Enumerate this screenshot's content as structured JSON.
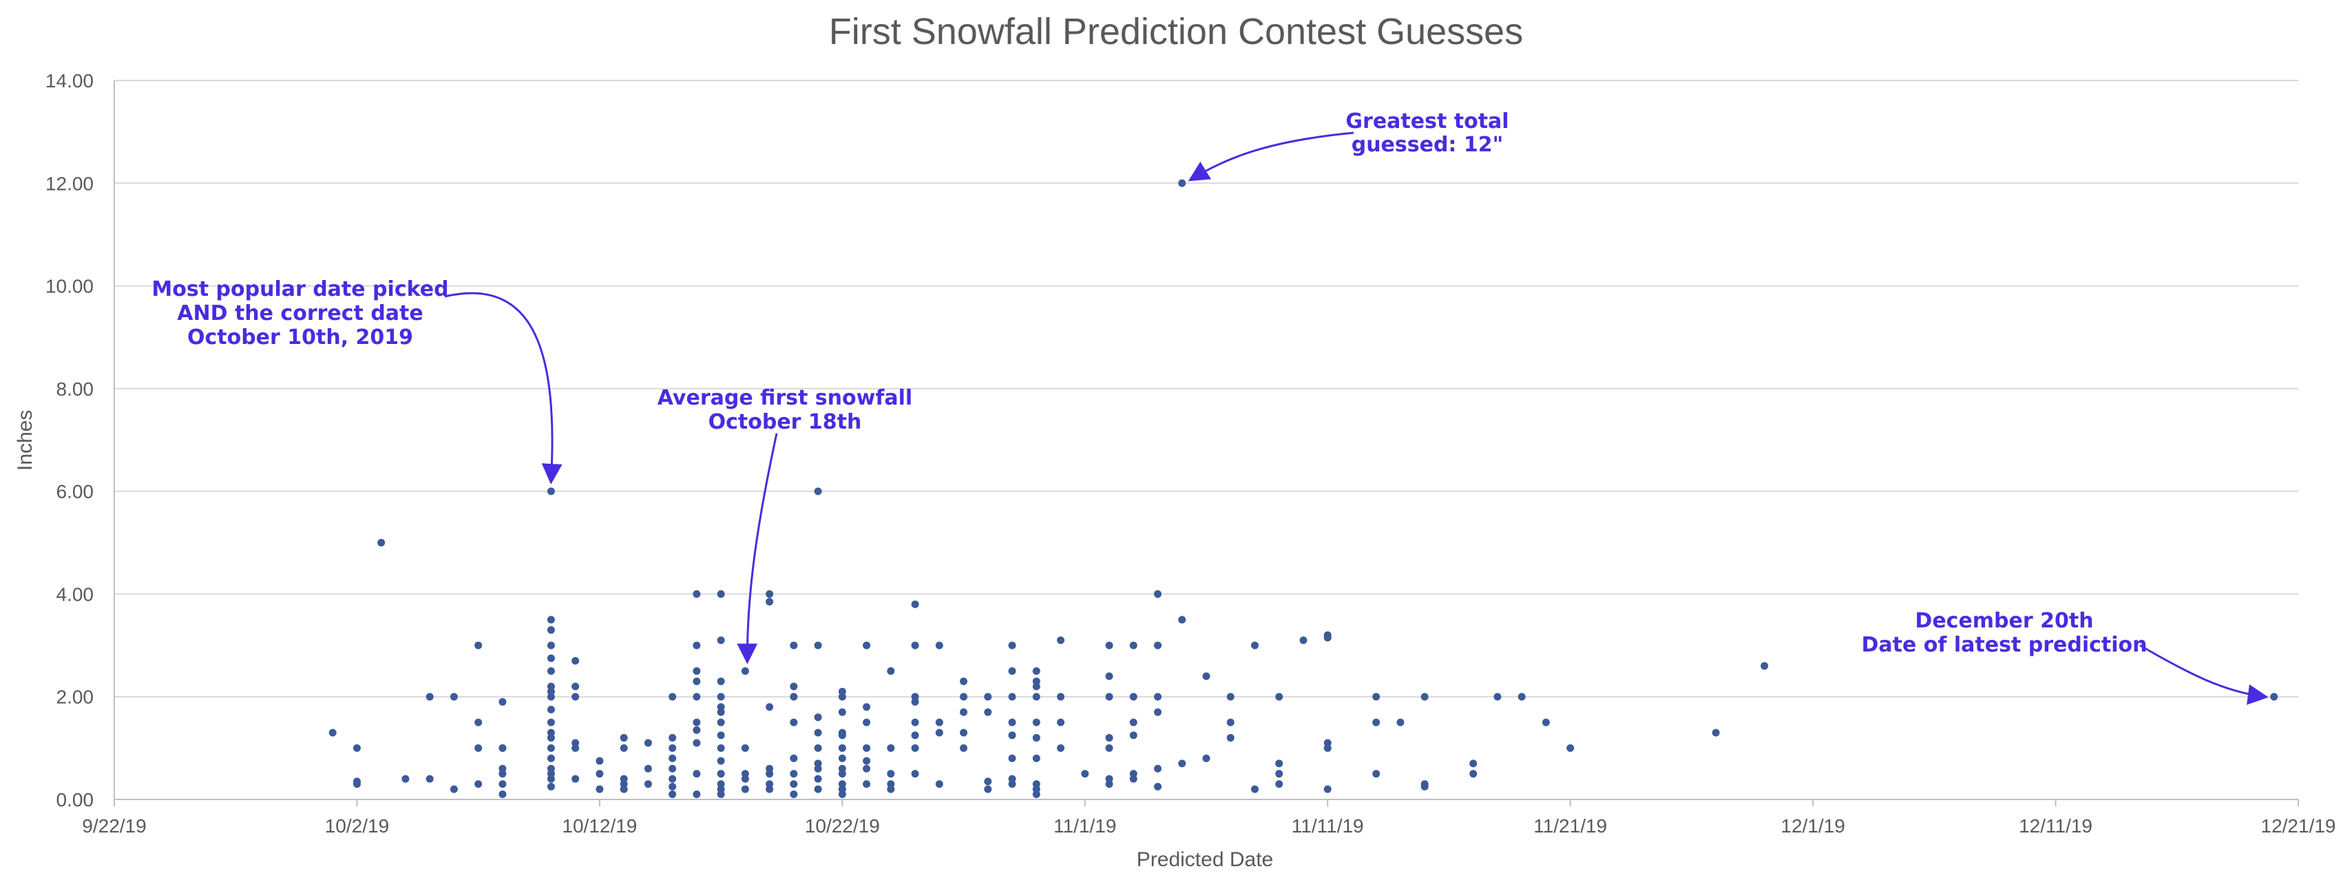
{
  "chart_data": {
    "type": "scatter",
    "title": "First Snowfall Prediction Contest Guesses",
    "xlabel": "Predicted Date",
    "ylabel": "Inches",
    "x_format": "M/D/YY",
    "xlim": [
      "2019-09-22",
      "2019-12-21"
    ],
    "ylim": [
      0,
      14
    ],
    "x_ticks": [
      {
        "date": "2019-09-22",
        "label": "9/22/19"
      },
      {
        "date": "2019-10-02",
        "label": "10/2/19"
      },
      {
        "date": "2019-10-12",
        "label": "10/12/19"
      },
      {
        "date": "2019-10-22",
        "label": "10/22/19"
      },
      {
        "date": "2019-11-01",
        "label": "11/1/19"
      },
      {
        "date": "2019-11-11",
        "label": "11/11/19"
      },
      {
        "date": "2019-11-21",
        "label": "11/21/19"
      },
      {
        "date": "2019-12-01",
        "label": "12/1/19"
      },
      {
        "date": "2019-12-11",
        "label": "12/11/19"
      },
      {
        "date": "2019-12-21",
        "label": "12/21/19"
      }
    ],
    "y_ticks": [
      "0.00",
      "2.00",
      "4.00",
      "6.00",
      "8.00",
      "10.00",
      "12.00",
      "14.00"
    ],
    "grid": true,
    "legend": false,
    "marker_color": "#3C5A99",
    "points": [
      {
        "x": "2019-10-01",
        "y": 1.3
      },
      {
        "x": "2019-10-02",
        "y": 0.35
      },
      {
        "x": "2019-10-02",
        "y": 0.3
      },
      {
        "x": "2019-10-02",
        "y": 1.0
      },
      {
        "x": "2019-10-03",
        "y": 5.0
      },
      {
        "x": "2019-10-04",
        "y": 0.4
      },
      {
        "x": "2019-10-05",
        "y": 2.0
      },
      {
        "x": "2019-10-05",
        "y": 0.4
      },
      {
        "x": "2019-10-06",
        "y": 2.0
      },
      {
        "x": "2019-10-06",
        "y": 0.2
      },
      {
        "x": "2019-10-07",
        "y": 3.0
      },
      {
        "x": "2019-10-07",
        "y": 1.5
      },
      {
        "x": "2019-10-07",
        "y": 1.0
      },
      {
        "x": "2019-10-07",
        "y": 0.3
      },
      {
        "x": "2019-10-08",
        "y": 1.9
      },
      {
        "x": "2019-10-08",
        "y": 1.0
      },
      {
        "x": "2019-10-08",
        "y": 1.0
      },
      {
        "x": "2019-10-08",
        "y": 0.6
      },
      {
        "x": "2019-10-08",
        "y": 0.5
      },
      {
        "x": "2019-10-08",
        "y": 0.3
      },
      {
        "x": "2019-10-08",
        "y": 0.1
      },
      {
        "x": "2019-10-10",
        "y": 6.0
      },
      {
        "x": "2019-10-10",
        "y": 3.5
      },
      {
        "x": "2019-10-10",
        "y": 3.3
      },
      {
        "x": "2019-10-10",
        "y": 3.0
      },
      {
        "x": "2019-10-10",
        "y": 2.75
      },
      {
        "x": "2019-10-10",
        "y": 2.5
      },
      {
        "x": "2019-10-10",
        "y": 2.2
      },
      {
        "x": "2019-10-10",
        "y": 2.1
      },
      {
        "x": "2019-10-10",
        "y": 2.0
      },
      {
        "x": "2019-10-10",
        "y": 1.75
      },
      {
        "x": "2019-10-10",
        "y": 1.5
      },
      {
        "x": "2019-10-10",
        "y": 1.3
      },
      {
        "x": "2019-10-10",
        "y": 1.2
      },
      {
        "x": "2019-10-10",
        "y": 1.0
      },
      {
        "x": "2019-10-10",
        "y": 0.8
      },
      {
        "x": "2019-10-10",
        "y": 0.6
      },
      {
        "x": "2019-10-10",
        "y": 0.5
      },
      {
        "x": "2019-10-10",
        "y": 0.4
      },
      {
        "x": "2019-10-10",
        "y": 0.25
      },
      {
        "x": "2019-10-11",
        "y": 2.7
      },
      {
        "x": "2019-10-11",
        "y": 2.2
      },
      {
        "x": "2019-10-11",
        "y": 2.0
      },
      {
        "x": "2019-10-11",
        "y": 1.1
      },
      {
        "x": "2019-10-11",
        "y": 1.0
      },
      {
        "x": "2019-10-11",
        "y": 0.4
      },
      {
        "x": "2019-10-12",
        "y": 0.75
      },
      {
        "x": "2019-10-12",
        "y": 0.5
      },
      {
        "x": "2019-10-12",
        "y": 0.2
      },
      {
        "x": "2019-10-13",
        "y": 1.2
      },
      {
        "x": "2019-10-13",
        "y": 1.0
      },
      {
        "x": "2019-10-13",
        "y": 0.4
      },
      {
        "x": "2019-10-13",
        "y": 0.3
      },
      {
        "x": "2019-10-13",
        "y": 0.2
      },
      {
        "x": "2019-10-14",
        "y": 1.1
      },
      {
        "x": "2019-10-14",
        "y": 0.6
      },
      {
        "x": "2019-10-14",
        "y": 0.3
      },
      {
        "x": "2019-10-15",
        "y": 2.0
      },
      {
        "x": "2019-10-15",
        "y": 1.2
      },
      {
        "x": "2019-10-15",
        "y": 1.0
      },
      {
        "x": "2019-10-15",
        "y": 0.8
      },
      {
        "x": "2019-10-15",
        "y": 0.6
      },
      {
        "x": "2019-10-15",
        "y": 0.4
      },
      {
        "x": "2019-10-15",
        "y": 0.25
      },
      {
        "x": "2019-10-15",
        "y": 0.1
      },
      {
        "x": "2019-10-16",
        "y": 4.0
      },
      {
        "x": "2019-10-16",
        "y": 3.0
      },
      {
        "x": "2019-10-16",
        "y": 2.5
      },
      {
        "x": "2019-10-16",
        "y": 2.3
      },
      {
        "x": "2019-10-16",
        "y": 2.0
      },
      {
        "x": "2019-10-16",
        "y": 1.5
      },
      {
        "x": "2019-10-16",
        "y": 1.35
      },
      {
        "x": "2019-10-16",
        "y": 1.1
      },
      {
        "x": "2019-10-16",
        "y": 0.5
      },
      {
        "x": "2019-10-16",
        "y": 0.1
      },
      {
        "x": "2019-10-17",
        "y": 4.0
      },
      {
        "x": "2019-10-17",
        "y": 3.1
      },
      {
        "x": "2019-10-17",
        "y": 2.3
      },
      {
        "x": "2019-10-17",
        "y": 2.0
      },
      {
        "x": "2019-10-17",
        "y": 1.8
      },
      {
        "x": "2019-10-17",
        "y": 1.7
      },
      {
        "x": "2019-10-17",
        "y": 1.5
      },
      {
        "x": "2019-10-17",
        "y": 1.25
      },
      {
        "x": "2019-10-17",
        "y": 1.0
      },
      {
        "x": "2019-10-17",
        "y": 0.75
      },
      {
        "x": "2019-10-17",
        "y": 0.5
      },
      {
        "x": "2019-10-17",
        "y": 0.3
      },
      {
        "x": "2019-10-17",
        "y": 0.2
      },
      {
        "x": "2019-10-17",
        "y": 0.1
      },
      {
        "x": "2019-10-18",
        "y": 2.5
      },
      {
        "x": "2019-10-18",
        "y": 1.0
      },
      {
        "x": "2019-10-18",
        "y": 0.5
      },
      {
        "x": "2019-10-18",
        "y": 0.4
      },
      {
        "x": "2019-10-18",
        "y": 0.2
      },
      {
        "x": "2019-10-19",
        "y": 4.0
      },
      {
        "x": "2019-10-19",
        "y": 3.85
      },
      {
        "x": "2019-10-19",
        "y": 1.8
      },
      {
        "x": "2019-10-19",
        "y": 0.6
      },
      {
        "x": "2019-10-19",
        "y": 0.5
      },
      {
        "x": "2019-10-19",
        "y": 0.3
      },
      {
        "x": "2019-10-19",
        "y": 0.2
      },
      {
        "x": "2019-10-20",
        "y": 3.0
      },
      {
        "x": "2019-10-20",
        "y": 2.2
      },
      {
        "x": "2019-10-20",
        "y": 2.0
      },
      {
        "x": "2019-10-20",
        "y": 1.5
      },
      {
        "x": "2019-10-20",
        "y": 0.8
      },
      {
        "x": "2019-10-20",
        "y": 0.5
      },
      {
        "x": "2019-10-20",
        "y": 0.3
      },
      {
        "x": "2019-10-20",
        "y": 0.1
      },
      {
        "x": "2019-10-21",
        "y": 6.0
      },
      {
        "x": "2019-10-21",
        "y": 3.0
      },
      {
        "x": "2019-10-21",
        "y": 1.6
      },
      {
        "x": "2019-10-21",
        "y": 1.3
      },
      {
        "x": "2019-10-21",
        "y": 1.0
      },
      {
        "x": "2019-10-21",
        "y": 0.7
      },
      {
        "x": "2019-10-21",
        "y": 0.6
      },
      {
        "x": "2019-10-21",
        "y": 0.4
      },
      {
        "x": "2019-10-21",
        "y": 0.2
      },
      {
        "x": "2019-10-22",
        "y": 2.1
      },
      {
        "x": "2019-10-22",
        "y": 2.0
      },
      {
        "x": "2019-10-22",
        "y": 1.7
      },
      {
        "x": "2019-10-22",
        "y": 1.3
      },
      {
        "x": "2019-10-22",
        "y": 1.25
      },
      {
        "x": "2019-10-22",
        "y": 1.0
      },
      {
        "x": "2019-10-22",
        "y": 0.8
      },
      {
        "x": "2019-10-22",
        "y": 0.6
      },
      {
        "x": "2019-10-22",
        "y": 0.5
      },
      {
        "x": "2019-10-22",
        "y": 0.3
      },
      {
        "x": "2019-10-22",
        "y": 0.2
      },
      {
        "x": "2019-10-22",
        "y": 0.1
      },
      {
        "x": "2019-10-23",
        "y": 3.0
      },
      {
        "x": "2019-10-23",
        "y": 1.8
      },
      {
        "x": "2019-10-23",
        "y": 1.5
      },
      {
        "x": "2019-10-23",
        "y": 1.0
      },
      {
        "x": "2019-10-23",
        "y": 0.75
      },
      {
        "x": "2019-10-23",
        "y": 0.6
      },
      {
        "x": "2019-10-23",
        "y": 0.3
      },
      {
        "x": "2019-10-24",
        "y": 2.5
      },
      {
        "x": "2019-10-24",
        "y": 1.0
      },
      {
        "x": "2019-10-24",
        "y": 0.5
      },
      {
        "x": "2019-10-24",
        "y": 0.3
      },
      {
        "x": "2019-10-24",
        "y": 0.2
      },
      {
        "x": "2019-10-25",
        "y": 3.8
      },
      {
        "x": "2019-10-25",
        "y": 3.0
      },
      {
        "x": "2019-10-25",
        "y": 2.0
      },
      {
        "x": "2019-10-25",
        "y": 1.9
      },
      {
        "x": "2019-10-25",
        "y": 1.5
      },
      {
        "x": "2019-10-25",
        "y": 1.25
      },
      {
        "x": "2019-10-25",
        "y": 1.0
      },
      {
        "x": "2019-10-25",
        "y": 0.5
      },
      {
        "x": "2019-10-26",
        "y": 3.0
      },
      {
        "x": "2019-10-26",
        "y": 1.5
      },
      {
        "x": "2019-10-26",
        "y": 1.3
      },
      {
        "x": "2019-10-26",
        "y": 0.3
      },
      {
        "x": "2019-10-27",
        "y": 2.3
      },
      {
        "x": "2019-10-27",
        "y": 2.0
      },
      {
        "x": "2019-10-27",
        "y": 1.7
      },
      {
        "x": "2019-10-27",
        "y": 1.3
      },
      {
        "x": "2019-10-27",
        "y": 1.0
      },
      {
        "x": "2019-10-28",
        "y": 2.0
      },
      {
        "x": "2019-10-28",
        "y": 1.7
      },
      {
        "x": "2019-10-28",
        "y": 0.35
      },
      {
        "x": "2019-10-28",
        "y": 0.2
      },
      {
        "x": "2019-10-29",
        "y": 3.0
      },
      {
        "x": "2019-10-29",
        "y": 2.5
      },
      {
        "x": "2019-10-29",
        "y": 2.0
      },
      {
        "x": "2019-10-29",
        "y": 1.5
      },
      {
        "x": "2019-10-29",
        "y": 1.25
      },
      {
        "x": "2019-10-29",
        "y": 0.8
      },
      {
        "x": "2019-10-29",
        "y": 0.4
      },
      {
        "x": "2019-10-29",
        "y": 0.3
      },
      {
        "x": "2019-10-30",
        "y": 2.5
      },
      {
        "x": "2019-10-30",
        "y": 2.3
      },
      {
        "x": "2019-10-30",
        "y": 2.2
      },
      {
        "x": "2019-10-30",
        "y": 2.0
      },
      {
        "x": "2019-10-30",
        "y": 1.5
      },
      {
        "x": "2019-10-30",
        "y": 1.2
      },
      {
        "x": "2019-10-30",
        "y": 0.8
      },
      {
        "x": "2019-10-30",
        "y": 0.3
      },
      {
        "x": "2019-10-30",
        "y": 0.2
      },
      {
        "x": "2019-10-30",
        "y": 0.1
      },
      {
        "x": "2019-10-31",
        "y": 3.1
      },
      {
        "x": "2019-10-31",
        "y": 2.0
      },
      {
        "x": "2019-10-31",
        "y": 1.5
      },
      {
        "x": "2019-10-31",
        "y": 1.0
      },
      {
        "x": "2019-11-01",
        "y": 0.5
      },
      {
        "x": "2019-11-02",
        "y": 3.0
      },
      {
        "x": "2019-11-02",
        "y": 2.4
      },
      {
        "x": "2019-11-02",
        "y": 2.0
      },
      {
        "x": "2019-11-02",
        "y": 1.2
      },
      {
        "x": "2019-11-02",
        "y": 1.0
      },
      {
        "x": "2019-11-02",
        "y": 0.4
      },
      {
        "x": "2019-11-02",
        "y": 0.3
      },
      {
        "x": "2019-11-03",
        "y": 3.0
      },
      {
        "x": "2019-11-03",
        "y": 2.0
      },
      {
        "x": "2019-11-03",
        "y": 1.5
      },
      {
        "x": "2019-11-03",
        "y": 1.25
      },
      {
        "x": "2019-11-03",
        "y": 0.5
      },
      {
        "x": "2019-11-03",
        "y": 0.4
      },
      {
        "x": "2019-11-04",
        "y": 4.0
      },
      {
        "x": "2019-11-04",
        "y": 3.0
      },
      {
        "x": "2019-11-04",
        "y": 2.0
      },
      {
        "x": "2019-11-04",
        "y": 1.7
      },
      {
        "x": "2019-11-04",
        "y": 0.6
      },
      {
        "x": "2019-11-04",
        "y": 0.25
      },
      {
        "x": "2019-11-05",
        "y": 12.0
      },
      {
        "x": "2019-11-05",
        "y": 3.5
      },
      {
        "x": "2019-11-05",
        "y": 0.7
      },
      {
        "x": "2019-11-06",
        "y": 2.4
      },
      {
        "x": "2019-11-06",
        "y": 0.8
      },
      {
        "x": "2019-11-07",
        "y": 2.0
      },
      {
        "x": "2019-11-07",
        "y": 1.5
      },
      {
        "x": "2019-11-07",
        "y": 1.2
      },
      {
        "x": "2019-11-08",
        "y": 3.0
      },
      {
        "x": "2019-11-08",
        "y": 0.2
      },
      {
        "x": "2019-11-09",
        "y": 2.0
      },
      {
        "x": "2019-11-09",
        "y": 0.7
      },
      {
        "x": "2019-11-09",
        "y": 0.5
      },
      {
        "x": "2019-11-09",
        "y": 0.3
      },
      {
        "x": "2019-11-10",
        "y": 3.1
      },
      {
        "x": "2019-11-11",
        "y": 3.2
      },
      {
        "x": "2019-11-11",
        "y": 3.15
      },
      {
        "x": "2019-11-11",
        "y": 1.1
      },
      {
        "x": "2019-11-11",
        "y": 1.0
      },
      {
        "x": "2019-11-11",
        "y": 0.2
      },
      {
        "x": "2019-11-13",
        "y": 2.0
      },
      {
        "x": "2019-11-13",
        "y": 1.5
      },
      {
        "x": "2019-11-13",
        "y": 0.5
      },
      {
        "x": "2019-11-14",
        "y": 1.5
      },
      {
        "x": "2019-11-15",
        "y": 2.0
      },
      {
        "x": "2019-11-15",
        "y": 0.3
      },
      {
        "x": "2019-11-15",
        "y": 0.25
      },
      {
        "x": "2019-11-17",
        "y": 0.7
      },
      {
        "x": "2019-11-17",
        "y": 0.5
      },
      {
        "x": "2019-11-18",
        "y": 2.0
      },
      {
        "x": "2019-11-19",
        "y": 2.0
      },
      {
        "x": "2019-11-20",
        "y": 1.5
      },
      {
        "x": "2019-11-21",
        "y": 1.0
      },
      {
        "x": "2019-11-27",
        "y": 1.3
      },
      {
        "x": "2019-11-29",
        "y": 2.6
      },
      {
        "x": "2019-12-20",
        "y": 2.0
      }
    ],
    "annotations": [
      {
        "id": "max",
        "lines": [
          "Greatest total",
          "guessed: 12\""
        ],
        "target": {
          "x": "2019-11-05",
          "y": 12.0
        }
      },
      {
        "id": "popular",
        "lines": [
          "Most popular date picked",
          "AND the correct date",
          "October 10th, 2019"
        ],
        "target": {
          "x": "2019-10-10",
          "y": 6.0
        }
      },
      {
        "id": "average",
        "lines": [
          "Average first snowfall",
          "October 18th"
        ],
        "target": {
          "x": "2019-10-18",
          "y": 2.5
        }
      },
      {
        "id": "latest",
        "lines": [
          "December 20th",
          "Date of latest prediction"
        ],
        "target": {
          "x": "2019-12-20",
          "y": 2.0
        }
      }
    ],
    "annotation_color": "#4A2BE0"
  }
}
